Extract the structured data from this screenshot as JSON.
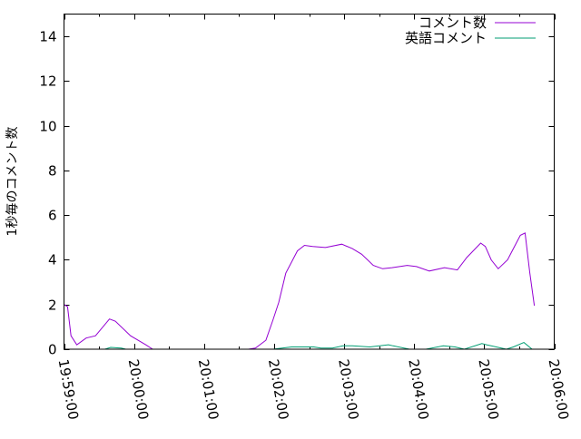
{
  "chart_data": {
    "type": "line",
    "title": "",
    "xlabel": "",
    "ylabel": "1秒毎のコメント数",
    "xlim": [
      "19:59:00",
      "20:06:00"
    ],
    "ylim": [
      0,
      15
    ],
    "x_ticks": [
      "19:59:00",
      "20:00:00",
      "20:01:00",
      "20:02:00",
      "20:03:00",
      "20:04:00",
      "20:05:00",
      "20:06:00"
    ],
    "y_ticks": [
      "0",
      "2",
      "4",
      "6",
      "8",
      "10",
      "12",
      "14"
    ],
    "grid": false,
    "legend": "top-right",
    "series": [
      {
        "name": "コメント数",
        "color": "#9400d3",
        "x": [
          "19:59:00",
          "19:59:03",
          "19:59:06",
          "19:59:11",
          "19:59:19",
          "19:59:27",
          "19:59:39",
          "19:59:44",
          "19:59:57",
          "20:00:10",
          "20:00:16",
          "20:01:38",
          "20:01:44",
          "20:01:53",
          "20:01:59",
          "20:02:04",
          "20:02:10",
          "20:02:20",
          "20:02:26",
          "20:02:33",
          "20:02:44",
          "20:02:58",
          "20:03:07",
          "20:03:15",
          "20:03:25",
          "20:03:33",
          "20:03:41",
          "20:03:54",
          "20:04:02",
          "20:04:13",
          "20:04:26",
          "20:04:37",
          "20:04:45",
          "20:04:57",
          "20:05:01",
          "20:05:06",
          "20:05:12",
          "20:05:20",
          "20:05:24",
          "20:05:31",
          "20:05:35",
          "20:05:39",
          "20:05:43"
        ],
        "y": [
          2.0,
          1.9,
          0.6,
          0.2,
          0.5,
          0.6,
          1.35,
          1.25,
          0.6,
          0.2,
          0,
          0,
          0.05,
          0.4,
          1.3,
          2.1,
          3.4,
          4.4,
          4.65,
          4.6,
          4.55,
          4.7,
          4.5,
          4.25,
          3.75,
          3.6,
          3.65,
          3.75,
          3.7,
          3.5,
          3.65,
          3.55,
          4.1,
          4.75,
          4.6,
          4.0,
          3.6,
          4.0,
          4.4,
          5.1,
          5.2,
          3.45,
          1.95
        ]
      },
      {
        "name": "英語コメント",
        "color": "#009e73",
        "x": [
          "19:59:00",
          "19:59:35",
          "19:59:40",
          "19:59:49",
          "19:59:53",
          "20:01:59",
          "20:02:15",
          "20:02:34",
          "20:02:40",
          "20:02:50",
          "20:02:59",
          "20:03:07",
          "20:03:22",
          "20:03:38",
          "20:03:42",
          "20:03:56",
          "20:04:10",
          "20:04:25",
          "20:04:35",
          "20:04:43",
          "20:04:58",
          "20:05:02",
          "20:05:19",
          "20:05:25",
          "20:05:34",
          "20:05:41"
        ],
        "y": [
          0,
          0,
          0.08,
          0.05,
          0,
          0,
          0.1,
          0.1,
          0.05,
          0.05,
          0.15,
          0.15,
          0.1,
          0.2,
          0.15,
          0,
          0,
          0.15,
          0.1,
          0,
          0.25,
          0.2,
          0,
          0.1,
          0.3,
          0
        ]
      }
    ]
  }
}
